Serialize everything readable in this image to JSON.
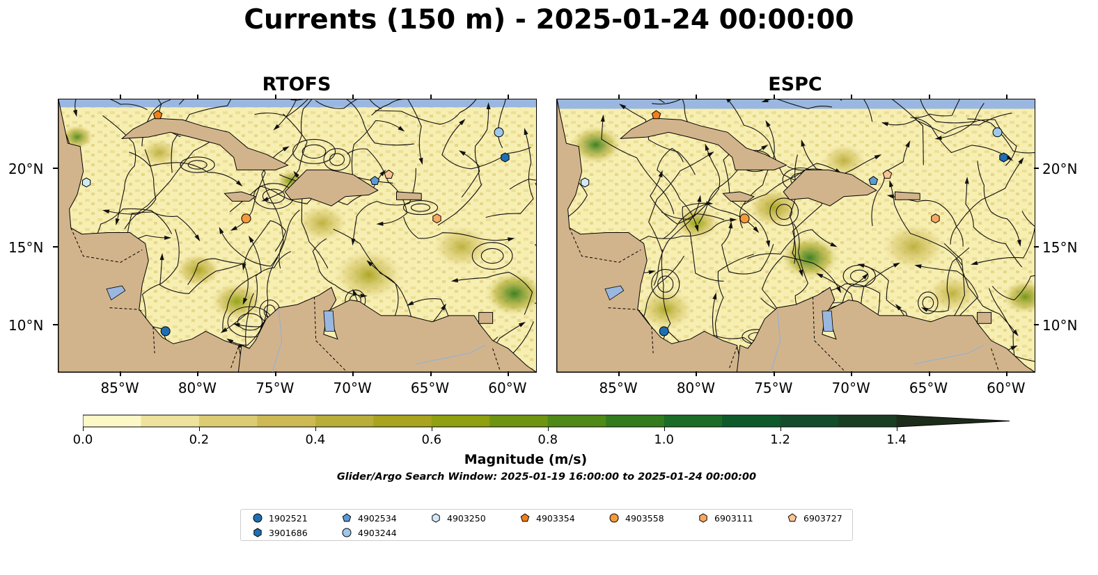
{
  "title": "Currents (150 m) - 2025-01-24 00:00:00",
  "panels": [
    {
      "name": "RTOFS"
    },
    {
      "name": "ESPC"
    }
  ],
  "axes": {
    "x_ticks": [
      "85°W",
      "80°W",
      "75°W",
      "70°W",
      "65°W",
      "60°W"
    ],
    "y_ticks": [
      "20°N",
      "15°N",
      "10°N"
    ]
  },
  "colorbar": {
    "label": "Magnitude (m/s)",
    "tick_labels": [
      "0.0",
      "0.2",
      "0.4",
      "0.6",
      "0.8",
      "1.0",
      "1.2",
      "1.4"
    ],
    "range": [
      0.0,
      1.5
    ],
    "extend": "max",
    "colors": [
      "#fdf8c8",
      "#efe29c",
      "#dccc74",
      "#cdba55",
      "#baae3a",
      "#a9a31f",
      "#8fa010",
      "#6f9412",
      "#4f8a18",
      "#337c1e",
      "#1b6c26",
      "#0f5a2a",
      "#144b2a",
      "#1a3e24",
      "#1d2c1a"
    ]
  },
  "search_window": "Glider/Argo Search Window: 2025-01-19 16:00:00 to 2025-01-24 00:00:00",
  "land_color": "#d2b48c",
  "ocean_color": "#99b7e0",
  "floats": [
    {
      "id": "1902521",
      "marker": "circle",
      "color": "#1f6fb0",
      "lon": -82.1,
      "lat": 9.6
    },
    {
      "id": "3901686",
      "marker": "hexagon",
      "color": "#1f6fb0",
      "lon": -60.2,
      "lat": 20.7
    },
    {
      "id": "4902534",
      "marker": "pentagon",
      "color": "#5b9bd5",
      "lon": -68.6,
      "lat": 19.2
    },
    {
      "id": "4903244",
      "marker": "circle",
      "color": "#9ec8ea",
      "lon": -60.6,
      "lat": 22.3
    },
    {
      "id": "4903250",
      "marker": "hexagon",
      "color": "#d2e8f6",
      "lon": -87.2,
      "lat": 19.1
    },
    {
      "id": "4903354",
      "marker": "pentagon",
      "color": "#f27f1b",
      "lon": -82.6,
      "lat": 23.4
    },
    {
      "id": "4903558",
      "marker": "circle",
      "color": "#f59a3a",
      "lon": -76.9,
      "lat": 16.8
    },
    {
      "id": "6903111",
      "marker": "hexagon",
      "color": "#f8a860",
      "lon": -64.6,
      "lat": 16.8
    },
    {
      "id": "6903727",
      "marker": "pentagon",
      "color": "#fbc493",
      "lon": -67.7,
      "lat": 19.6
    }
  ]
}
